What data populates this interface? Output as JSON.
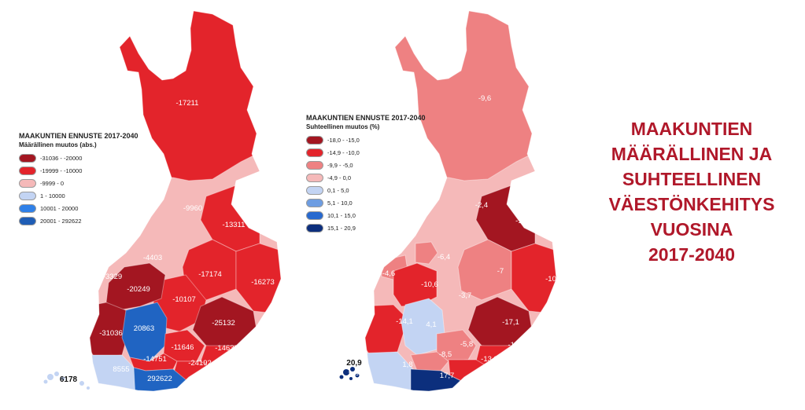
{
  "colors": {
    "dark_red": "#a31621",
    "red": "#e3242b",
    "mid_pink": "#ee8182",
    "light_pink": "#f5b9b9",
    "light_blue": "#c3d4f3",
    "mid_blue": "#6d9de2",
    "blue": "#2769cf",
    "dark_blue": "#0c2f7d",
    "abs_blue": "#2064c2",
    "title_red": "#b0182a"
  },
  "left_map": {
    "legend": {
      "title": "MAAKUNTIEN ENNUSTE 2017-2040",
      "subtitle": "Määrällinen muutos (abs.)",
      "items": [
        {
          "label": "-31036 - -20000",
          "color": "#a31621"
        },
        {
          "label": "-19999 - -10000",
          "color": "#e3242b"
        },
        {
          "label": "-9999 - 0",
          "color": "#f5b9b9"
        },
        {
          "label": "1 - 10000",
          "color": "#c3d4f3"
        },
        {
          "label": "10001 - 20000",
          "color": "#2f80e8"
        },
        {
          "label": "20001 - 292622",
          "color": "#1f5db5"
        }
      ]
    },
    "regions": {
      "lappi": "-17211",
      "pohjois_pohjanmaa": "-9960",
      "kainuu": "-13311",
      "keski_pohjanmaa": "-4403",
      "pohjanmaa": "-3329",
      "etela_pohjanmaa": "-20249",
      "pohjois_savo": "-17174",
      "pohjois_karjala": "-16273",
      "keski_suomi": "-10107",
      "etela_savo": "-25132",
      "satakunta": "-31036",
      "pirkanmaa": "20863",
      "paijat_hame": "-11646",
      "etela_karjala": "-14639",
      "kanta_hame": "-14751",
      "kymenlaakso": "-24192",
      "varsinais_suomi": "8555",
      "uusimaa": "292622",
      "ahvenanmaa": "6178"
    }
  },
  "right_map": {
    "legend": {
      "title": "MAAKUNTIEN ENNUSTE 2017-2040",
      "subtitle": "Suhteellinen muutos (%)",
      "items": [
        {
          "label": "-18,0 - -15,0",
          "color": "#a31621"
        },
        {
          "label": "-14,9 - -10,0",
          "color": "#e3242b"
        },
        {
          "label": "-9,9 - -5,0",
          "color": "#ee8182"
        },
        {
          "label": "-4,9 - 0,0",
          "color": "#f5b9b9"
        },
        {
          "label": "0,1 - 5,0",
          "color": "#c3d4f3"
        },
        {
          "label": "5,1 - 10,0",
          "color": "#6d9de2"
        },
        {
          "label": "10,1 - 15,0",
          "color": "#2769cf"
        },
        {
          "label": "15,1 - 20,9",
          "color": "#0c2f7d"
        }
      ]
    },
    "regions": {
      "lappi": "-9,6",
      "pohjois_pohjanmaa": "-2,4",
      "kainuu": "-18",
      "keski_pohjanmaa": "-6,4",
      "pohjanmaa": "-4,6",
      "etela_pohjanmaa": "-10,6",
      "pohjois_savo": "-7",
      "pohjois_karjala": "-10",
      "keski_suomi": "-3,7",
      "etela_savo": "-17,1",
      "satakunta": "-14,1",
      "pirkanmaa": "4,1",
      "paijat_hame": "-5,8",
      "etela_karjala": "-11,3",
      "kanta_hame": "-8,5",
      "kymenlaakso": "-13,8",
      "varsinais_suomi": "1,8",
      "uusimaa": "17,7",
      "ahvenanmaa": "20,9",
      "ahvenanmaa_inner": "20,9"
    }
  },
  "title_lines": [
    "MAAKUNTIEN",
    "MÄÄRÄLLINEN JA",
    "SUHTEELLINEN",
    "VÄESTÖNKEHITYS",
    "VUOSINA",
    "2017-2040"
  ]
}
